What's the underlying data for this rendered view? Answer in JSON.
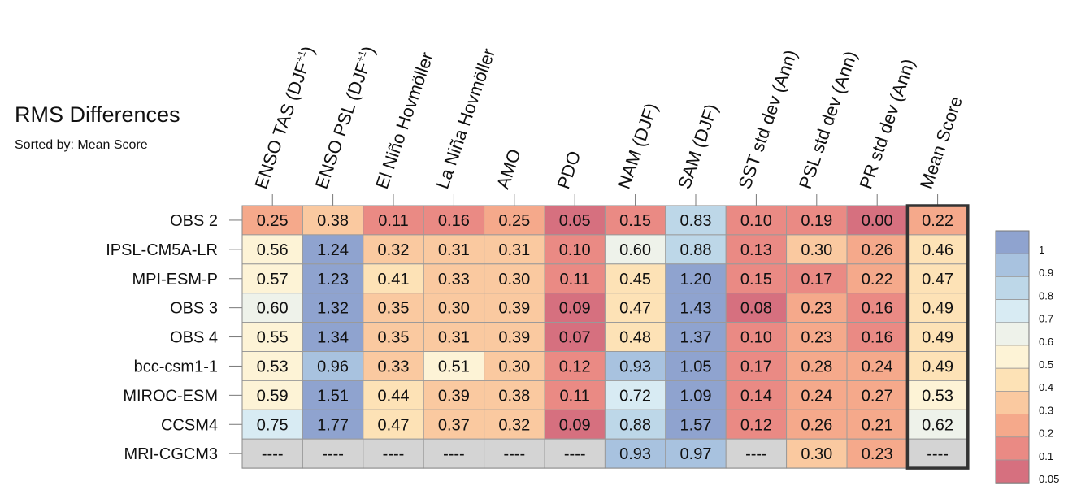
{
  "chart_data": {
    "type": "heatmap",
    "title": "RMS Differences",
    "subtitle": "Sorted by: Mean Score",
    "columns": [
      "ENSO TAS (DJF+1)",
      "ENSO PSL (DJF+1)",
      "El Niño Hovmöller",
      "La Niña Hovmöller",
      "AMO",
      "PDO",
      "NAM (DJF)",
      "SAM (DJF)",
      "SST std dev (Ann)",
      "PSL std dev (Ann)",
      "PR std dev (Ann)",
      "Mean Score"
    ],
    "column_labels": [
      {
        "text": "ENSO TAS (DJF",
        "sup": "+1",
        "tail": ")"
      },
      {
        "text": "ENSO PSL (DJF",
        "sup": "+1",
        "tail": ")"
      },
      {
        "text": "El Niño Hovmöller",
        "sup": "",
        "tail": ""
      },
      {
        "text": "La Niña Hovmöller",
        "sup": "",
        "tail": ""
      },
      {
        "text": "AMO",
        "sup": "",
        "tail": ""
      },
      {
        "text": "PDO",
        "sup": "",
        "tail": ""
      },
      {
        "text": "NAM (DJF)",
        "sup": "",
        "tail": ""
      },
      {
        "text": "SAM (DJF)",
        "sup": "",
        "tail": ""
      },
      {
        "text": "SST std dev (Ann)",
        "sup": "",
        "tail": ""
      },
      {
        "text": "PSL std dev (Ann)",
        "sup": "",
        "tail": ""
      },
      {
        "text": "PR std dev (Ann)",
        "sup": "",
        "tail": ""
      },
      {
        "text": "Mean Score",
        "sup": "",
        "tail": ""
      }
    ],
    "rows": [
      "OBS 2",
      "IPSL-CM5A-LR",
      "MPI-ESM-P",
      "OBS 3",
      "OBS 4",
      "bcc-csm1-1",
      "MIROC-ESM",
      "CCSM4",
      "MRI-CGCM3"
    ],
    "values": [
      [
        0.25,
        0.38,
        0.11,
        0.16,
        0.25,
        0.05,
        0.15,
        0.83,
        0.1,
        0.19,
        0.0,
        0.22
      ],
      [
        0.56,
        1.24,
        0.32,
        0.31,
        0.31,
        0.1,
        0.6,
        0.88,
        0.13,
        0.3,
        0.26,
        0.46
      ],
      [
        0.57,
        1.23,
        0.41,
        0.33,
        0.3,
        0.11,
        0.45,
        1.2,
        0.15,
        0.17,
        0.22,
        0.47
      ],
      [
        0.6,
        1.32,
        0.35,
        0.3,
        0.39,
        0.09,
        0.47,
        1.43,
        0.08,
        0.23,
        0.16,
        0.49
      ],
      [
        0.55,
        1.34,
        0.35,
        0.31,
        0.39,
        0.07,
        0.48,
        1.37,
        0.1,
        0.23,
        0.16,
        0.49
      ],
      [
        0.53,
        0.96,
        0.33,
        0.51,
        0.3,
        0.12,
        0.93,
        1.05,
        0.17,
        0.28,
        0.24,
        0.49
      ],
      [
        0.59,
        1.51,
        0.44,
        0.39,
        0.38,
        0.11,
        0.72,
        1.09,
        0.14,
        0.24,
        0.27,
        0.53
      ],
      [
        0.75,
        1.77,
        0.47,
        0.37,
        0.32,
        0.09,
        0.88,
        1.57,
        0.12,
        0.26,
        0.21,
        0.62
      ],
      [
        null,
        null,
        null,
        null,
        null,
        null,
        0.93,
        0.97,
        null,
        0.3,
        0.23,
        null
      ]
    ],
    "missing_label": "----",
    "highlighted_column": "Mean Score",
    "colorbar": {
      "levels": [
        "1",
        "0.9",
        "0.8",
        "0.7",
        "0.6",
        "0.5",
        "0.4",
        "0.3",
        "0.2",
        "0.1",
        "0.05"
      ],
      "colors": [
        "#8fa3cf",
        "#a8c2df",
        "#bdd7e8",
        "#d8ebf3",
        "#eef2ea",
        "#fdf3d6",
        "#fde2b6",
        "#fac9a0",
        "#f5a98b",
        "#ea8a84",
        "#d6707f"
      ]
    },
    "missing_color": "#d4d4d4"
  }
}
